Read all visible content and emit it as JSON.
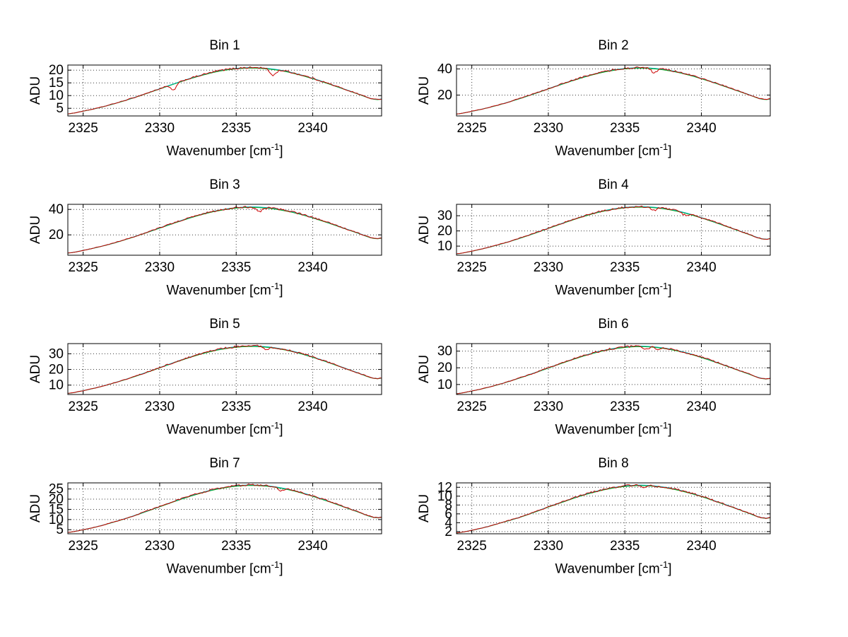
{
  "figure": {
    "background": "#ffffff"
  },
  "labels": {
    "ylabel": "ADU",
    "xlabel_main": "Wavenumber [cm",
    "xlabel_sup": "-1",
    "xlabel_close": "]"
  },
  "style": {
    "axis_color": "#000000",
    "grid_color": "#3c3c3c",
    "series_colors": {
      "measured": "#cc0000",
      "fit_cyan": "#00b4b4",
      "fit_green": "#00a000"
    },
    "noise_amp": 0.018,
    "grid": "on",
    "legend": "none"
  },
  "chart_data": [
    {
      "type": "line",
      "title": "Bin 1",
      "ylabel": "ADU",
      "xlim": [
        2324,
        2344.5
      ],
      "ylim": [
        2,
        22
      ],
      "xticks": [
        2325,
        2330,
        2335,
        2340
      ],
      "yticks": [
        5,
        10,
        15,
        20
      ],
      "x_start": 2324,
      "x_step": 1,
      "values": [
        2.8,
        3.9,
        5.2,
        6.8,
        8.6,
        10.6,
        12.7,
        14.8,
        16.8,
        18.5,
        19.9,
        20.7,
        21.0,
        20.7,
        19.9,
        18.5,
        16.8,
        14.8,
        12.7,
        10.6,
        8.6
      ],
      "dips": [
        {
          "x": 2330.9,
          "depth": 0.17,
          "w": 0.18
        },
        {
          "x": 2337.4,
          "depth": 0.12,
          "w": 0.2
        }
      ],
      "series": [
        {
          "name": "measured",
          "style": "noisy"
        },
        {
          "name": "fit",
          "style": "smooth"
        }
      ]
    },
    {
      "type": "line",
      "title": "Bin 2",
      "ylabel": "ADU",
      "xlim": [
        2324,
        2344.5
      ],
      "ylim": [
        4,
        43
      ],
      "xticks": [
        2325,
        2330,
        2335,
        2340
      ],
      "yticks": [
        20,
        40
      ],
      "x_start": 2324,
      "x_step": 1,
      "values": [
        5.5,
        7.6,
        10.2,
        13.3,
        16.9,
        20.8,
        24.9,
        29.0,
        32.8,
        36.2,
        38.8,
        40.4,
        41.0,
        40.4,
        38.8,
        36.2,
        32.8,
        29.0,
        24.9,
        20.8,
        16.9
      ],
      "dips": [
        {
          "x": 2336.9,
          "depth": 0.08,
          "w": 0.18
        }
      ],
      "series": [
        {
          "name": "measured",
          "style": "noisy"
        },
        {
          "name": "fit",
          "style": "smooth"
        }
      ]
    },
    {
      "type": "line",
      "title": "Bin 3",
      "ylabel": "ADU",
      "xlim": [
        2324,
        2344.5
      ],
      "ylim": [
        4,
        44
      ],
      "xticks": [
        2325,
        2330,
        2335,
        2340
      ],
      "yticks": [
        20,
        40
      ],
      "x_start": 2324,
      "x_step": 1,
      "values": [
        5.7,
        7.8,
        10.5,
        13.6,
        17.3,
        21.3,
        25.5,
        29.7,
        33.6,
        37.1,
        39.7,
        41.4,
        42.0,
        41.4,
        39.7,
        37.1,
        33.6,
        29.7,
        25.5,
        21.3,
        17.3
      ],
      "dips": [
        {
          "x": 2336.5,
          "depth": 0.09,
          "w": 0.2
        }
      ],
      "series": [
        {
          "name": "measured",
          "style": "noisy"
        },
        {
          "name": "fit",
          "style": "smooth"
        }
      ]
    },
    {
      "type": "line",
      "title": "Bin 4",
      "ylabel": "ADU",
      "xlim": [
        2324,
        2344.5
      ],
      "ylim": [
        4,
        37.5
      ],
      "xticks": [
        2325,
        2330,
        2335,
        2340
      ],
      "yticks": [
        10,
        20,
        30
      ],
      "x_start": 2324,
      "x_step": 1,
      "values": [
        4.9,
        6.7,
        9.0,
        11.7,
        14.8,
        18.2,
        21.8,
        25.4,
        28.8,
        31.8,
        34.1,
        35.5,
        36.0,
        35.5,
        34.1,
        31.8,
        28.8,
        25.4,
        21.8,
        18.2,
        14.8
      ],
      "dips": [
        {
          "x": 2336.9,
          "depth": 0.06,
          "w": 0.18
        },
        {
          "x": 2338.9,
          "depth": 0.05,
          "w": 0.18
        }
      ],
      "series": [
        {
          "name": "measured",
          "style": "noisy"
        },
        {
          "name": "fit",
          "style": "smooth"
        }
      ]
    },
    {
      "type": "line",
      "title": "Bin 5",
      "ylabel": "ADU",
      "xlim": [
        2324,
        2344.5
      ],
      "ylim": [
        4,
        36.5
      ],
      "xticks": [
        2325,
        2330,
        2335,
        2340
      ],
      "yticks": [
        10,
        20,
        30
      ],
      "x_start": 2324,
      "x_step": 1,
      "values": [
        4.7,
        6.5,
        8.7,
        11.4,
        14.4,
        17.7,
        21.2,
        24.7,
        28.0,
        30.9,
        33.1,
        34.5,
        35.0,
        34.5,
        33.1,
        30.9,
        28.0,
        24.7,
        21.2,
        17.7,
        14.4
      ],
      "dips": [
        {
          "x": 2337.0,
          "depth": 0.05,
          "w": 0.18
        }
      ],
      "series": [
        {
          "name": "measured",
          "style": "noisy"
        },
        {
          "name": "fit",
          "style": "smooth"
        }
      ]
    },
    {
      "type": "line",
      "title": "Bin 6",
      "ylabel": "ADU",
      "xlim": [
        2324,
        2344.5
      ],
      "ylim": [
        4,
        34.5
      ],
      "xticks": [
        2325,
        2330,
        2335,
        2340
      ],
      "yticks": [
        10,
        20,
        30
      ],
      "x_start": 2324,
      "x_step": 1,
      "values": [
        4.5,
        6.1,
        8.2,
        10.7,
        13.6,
        16.7,
        20.0,
        23.3,
        26.4,
        29.1,
        31.2,
        32.5,
        33.0,
        32.5,
        31.2,
        29.1,
        26.4,
        23.3,
        20.0,
        16.7,
        13.6
      ],
      "dips": [
        {
          "x": 2336.4,
          "depth": 0.05,
          "w": 0.18
        },
        {
          "x": 2337.2,
          "depth": 0.05,
          "w": 0.15
        }
      ],
      "series": [
        {
          "name": "measured",
          "style": "noisy"
        },
        {
          "name": "fit",
          "style": "smooth"
        }
      ]
    },
    {
      "type": "line",
      "title": "Bin 7",
      "ylabel": "ADU",
      "xlim": [
        2324,
        2344.5
      ],
      "ylim": [
        3,
        28
      ],
      "xticks": [
        2325,
        2330,
        2335,
        2340
      ],
      "yticks": [
        5,
        10,
        15,
        20,
        25
      ],
      "x_start": 2324,
      "x_step": 1,
      "values": [
        3.7,
        5.0,
        6.7,
        8.8,
        11.1,
        13.7,
        16.4,
        19.1,
        21.6,
        23.8,
        25.5,
        26.6,
        27.0,
        26.6,
        25.5,
        23.8,
        21.6,
        19.1,
        16.4,
        13.7,
        11.1
      ],
      "dips": [
        {
          "x": 2337.9,
          "depth": 0.06,
          "w": 0.18
        }
      ],
      "series": [
        {
          "name": "measured",
          "style": "noisy"
        },
        {
          "name": "fit",
          "style": "smooth"
        }
      ]
    },
    {
      "type": "line",
      "title": "Bin 8",
      "ylabel": "ADU",
      "xlim": [
        2324,
        2344.5
      ],
      "ylim": [
        1.5,
        13
      ],
      "xticks": [
        2325,
        2330,
        2335,
        2340
      ],
      "yticks": [
        2,
        4,
        6,
        8,
        10,
        12
      ],
      "x_start": 2324,
      "x_step": 1,
      "values": [
        1.7,
        2.3,
        3.1,
        4.1,
        5.1,
        6.3,
        7.6,
        8.8,
        10.0,
        11.0,
        11.8,
        12.3,
        12.5,
        12.3,
        11.8,
        11.0,
        10.0,
        8.8,
        7.6,
        6.3,
        5.1
      ],
      "dips": [
        {
          "x": 2336.2,
          "depth": 0.05,
          "w": 0.15
        }
      ],
      "series": [
        {
          "name": "measured",
          "style": "noisy"
        },
        {
          "name": "fit",
          "style": "smooth"
        }
      ]
    }
  ]
}
